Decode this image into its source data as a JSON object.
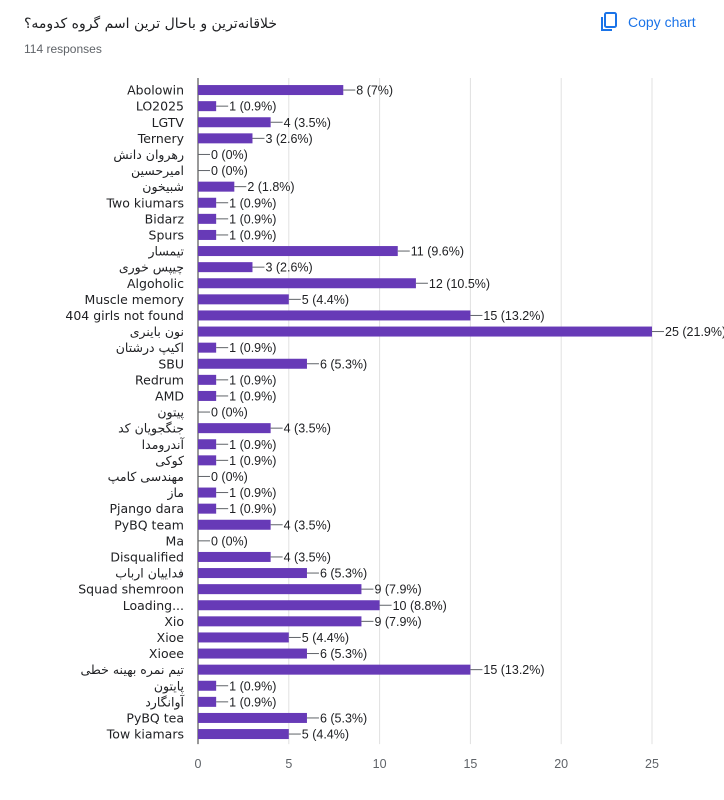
{
  "header": {
    "title": "خلاقانه‌ترین و باحال ترین اسم گروه کدومه؟",
    "responses": "114 responses",
    "copy_label": "Copy chart",
    "copy_icon": "copy-icon"
  },
  "colors": {
    "bar": "#673ab7",
    "accent": "#1a73e8",
    "grid": "#e0e0e0",
    "axis": "#5f6368"
  },
  "chart_data": {
    "type": "bar",
    "orientation": "horizontal",
    "categories": [
      "Abolowin",
      "LO2025",
      "LGTV",
      "Ternery",
      "رهروان دانش",
      "امیرحسین",
      "شبیخون",
      "Two kiumars",
      "Bidarz",
      "Spurs",
      "تیمسار",
      "چیپس خوری",
      "Algoholic",
      "Muscle memory",
      "404 girls not found",
      "نون باینری",
      "اکیپ درشتان",
      "SBU",
      "Redrum",
      "AMD",
      "پیتون",
      "جنگجویان کد",
      "آندرومدا",
      "کوکی",
      "مهندسی کامپ",
      "ماز",
      "Pjango dara",
      "PyBQ team",
      "Ma",
      "Disqualified",
      "فداییان ارباب",
      "Squad shemroon",
      "Loading...",
      "Xio",
      "Xioe",
      "Xioee",
      "تیم نمره بهینه خطی",
      "پایتون",
      "آوانگارد",
      "PyBQ tea",
      "Tow kiamars"
    ],
    "values": [
      8,
      1,
      4,
      3,
      0,
      0,
      2,
      1,
      1,
      1,
      11,
      3,
      12,
      5,
      15,
      25,
      1,
      6,
      1,
      1,
      0,
      4,
      1,
      1,
      0,
      1,
      1,
      4,
      0,
      4,
      6,
      9,
      10,
      9,
      5,
      6,
      15,
      1,
      1,
      6,
      5
    ],
    "data_labels": [
      "8 (7%)",
      "1 (0.9%)",
      "4 (3.5%)",
      "3 (2.6%)",
      "0 (0%)",
      "0 (0%)",
      "2 (1.8%)",
      "1 (0.9%)",
      "1 (0.9%)",
      "1 (0.9%)",
      "11 (9.6%)",
      "3 (2.6%)",
      "12 (10.5%)",
      "5 (4.4%)",
      "15 (13.2%)",
      "25 (21.9%)",
      "1 (0.9%)",
      "6 (5.3%)",
      "1 (0.9%)",
      "1 (0.9%)",
      "0 (0%)",
      "4 (3.5%)",
      "1 (0.9%)",
      "1 (0.9%)",
      "0 (0%)",
      "1 (0.9%)",
      "1 (0.9%)",
      "4 (3.5%)",
      "0 (0%)",
      "4 (3.5%)",
      "6 (5.3%)",
      "9 (7.9%)",
      "10 (8.8%)",
      "9 (7.9%)",
      "5 (4.4%)",
      "6 (5.3%)",
      "15 (13.2%)",
      "1 (0.9%)",
      "1 (0.9%)",
      "6 (5.3%)",
      "5 (4.4%)"
    ],
    "xlim": [
      0,
      25
    ],
    "xticks": [
      "0",
      "5",
      "10",
      "15",
      "20",
      "25"
    ],
    "grid": true
  }
}
